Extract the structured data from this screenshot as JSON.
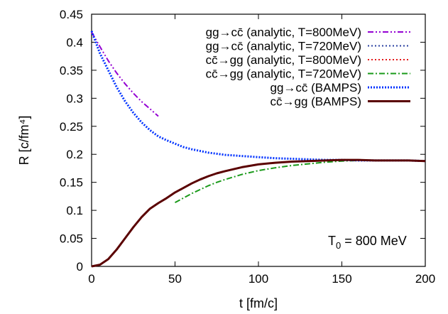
{
  "chart_data": {
    "type": "line",
    "xlabel": "t [fm/c]",
    "ylabel": "R [c/fm⁴]",
    "xlim": [
      0,
      200
    ],
    "ylim": [
      0,
      0.45
    ],
    "xticks": [
      0,
      50,
      100,
      150,
      200
    ],
    "yticks": [
      0,
      0.05,
      0.1,
      0.15,
      0.2,
      0.25,
      0.3,
      0.35,
      0.4,
      0.45
    ],
    "xtick_labels": [
      "0",
      "50",
      "100",
      "150",
      "200"
    ],
    "ytick_labels": [
      "0",
      "0.05",
      "0.1",
      "0.15",
      "0.2",
      "0.25",
      "0.3",
      "0.35",
      "0.4",
      "0.45"
    ],
    "grid": false,
    "legend_position": "top-right",
    "annotation": {
      "main": "T",
      "sub": "0",
      "rest": " = 800 MeV"
    },
    "series": [
      {
        "name": "gg→cc̄ (analytic, T=800MeV)",
        "color": "#9400d3",
        "dash": "dash-dot-dot",
        "x": [
          0,
          5,
          10,
          15,
          20,
          25,
          30,
          35,
          40
        ],
        "y": [
          0.418,
          0.392,
          0.367,
          0.345,
          0.326,
          0.309,
          0.294,
          0.281,
          0.268
        ]
      },
      {
        "name": "gg→cc̄ (analytic, T=720MeV)",
        "color": "#2a3fa0",
        "dash": "dotted",
        "x": [],
        "y": []
      },
      {
        "name": "cc̄→gg (analytic, T=800MeV)",
        "color": "#e41a1c",
        "dash": "dotted",
        "x": [],
        "y": []
      },
      {
        "name": "cc̄→gg (analytic, T=720MeV)",
        "color": "#1a9a1a",
        "dash": "dash-dot",
        "x": [
          50,
          55,
          60,
          65,
          70,
          75,
          80,
          90,
          100,
          110,
          120,
          130,
          140,
          150,
          160
        ],
        "y": [
          0.114,
          0.122,
          0.13,
          0.137,
          0.144,
          0.15,
          0.155,
          0.164,
          0.171,
          0.176,
          0.18,
          0.183,
          0.186,
          0.188,
          0.189
        ]
      },
      {
        "name": "gg→cc̄ (BAMPS)",
        "color": "#0033ff",
        "dash": "dense-dot",
        "x": [
          0,
          5,
          10,
          15,
          20,
          25,
          30,
          35,
          40,
          45,
          50,
          55,
          60,
          65,
          70,
          75,
          80,
          90,
          100,
          110,
          120,
          130,
          140,
          150,
          160,
          170,
          180,
          190,
          200
        ],
        "y": [
          0.42,
          0.38,
          0.35,
          0.32,
          0.295,
          0.274,
          0.257,
          0.243,
          0.232,
          0.225,
          0.219,
          0.213,
          0.209,
          0.206,
          0.203,
          0.201,
          0.199,
          0.197,
          0.195,
          0.193,
          0.192,
          0.191,
          0.19,
          0.19,
          0.189,
          0.189,
          0.189,
          0.189,
          0.188
        ]
      },
      {
        "name": "cc̄→gg (BAMPS)",
        "color": "#5a0000",
        "dash": "solid",
        "x": [
          0,
          5,
          10,
          15,
          20,
          25,
          30,
          35,
          40,
          45,
          50,
          55,
          60,
          65,
          70,
          75,
          80,
          90,
          100,
          110,
          120,
          130,
          140,
          150,
          160,
          170,
          180,
          190,
          200
        ],
        "y": [
          0,
          0.003,
          0.013,
          0.03,
          0.05,
          0.07,
          0.088,
          0.103,
          0.113,
          0.122,
          0.132,
          0.14,
          0.148,
          0.155,
          0.161,
          0.166,
          0.17,
          0.177,
          0.182,
          0.185,
          0.187,
          0.188,
          0.189,
          0.19,
          0.19,
          0.189,
          0.189,
          0.189,
          0.188
        ]
      }
    ]
  }
}
